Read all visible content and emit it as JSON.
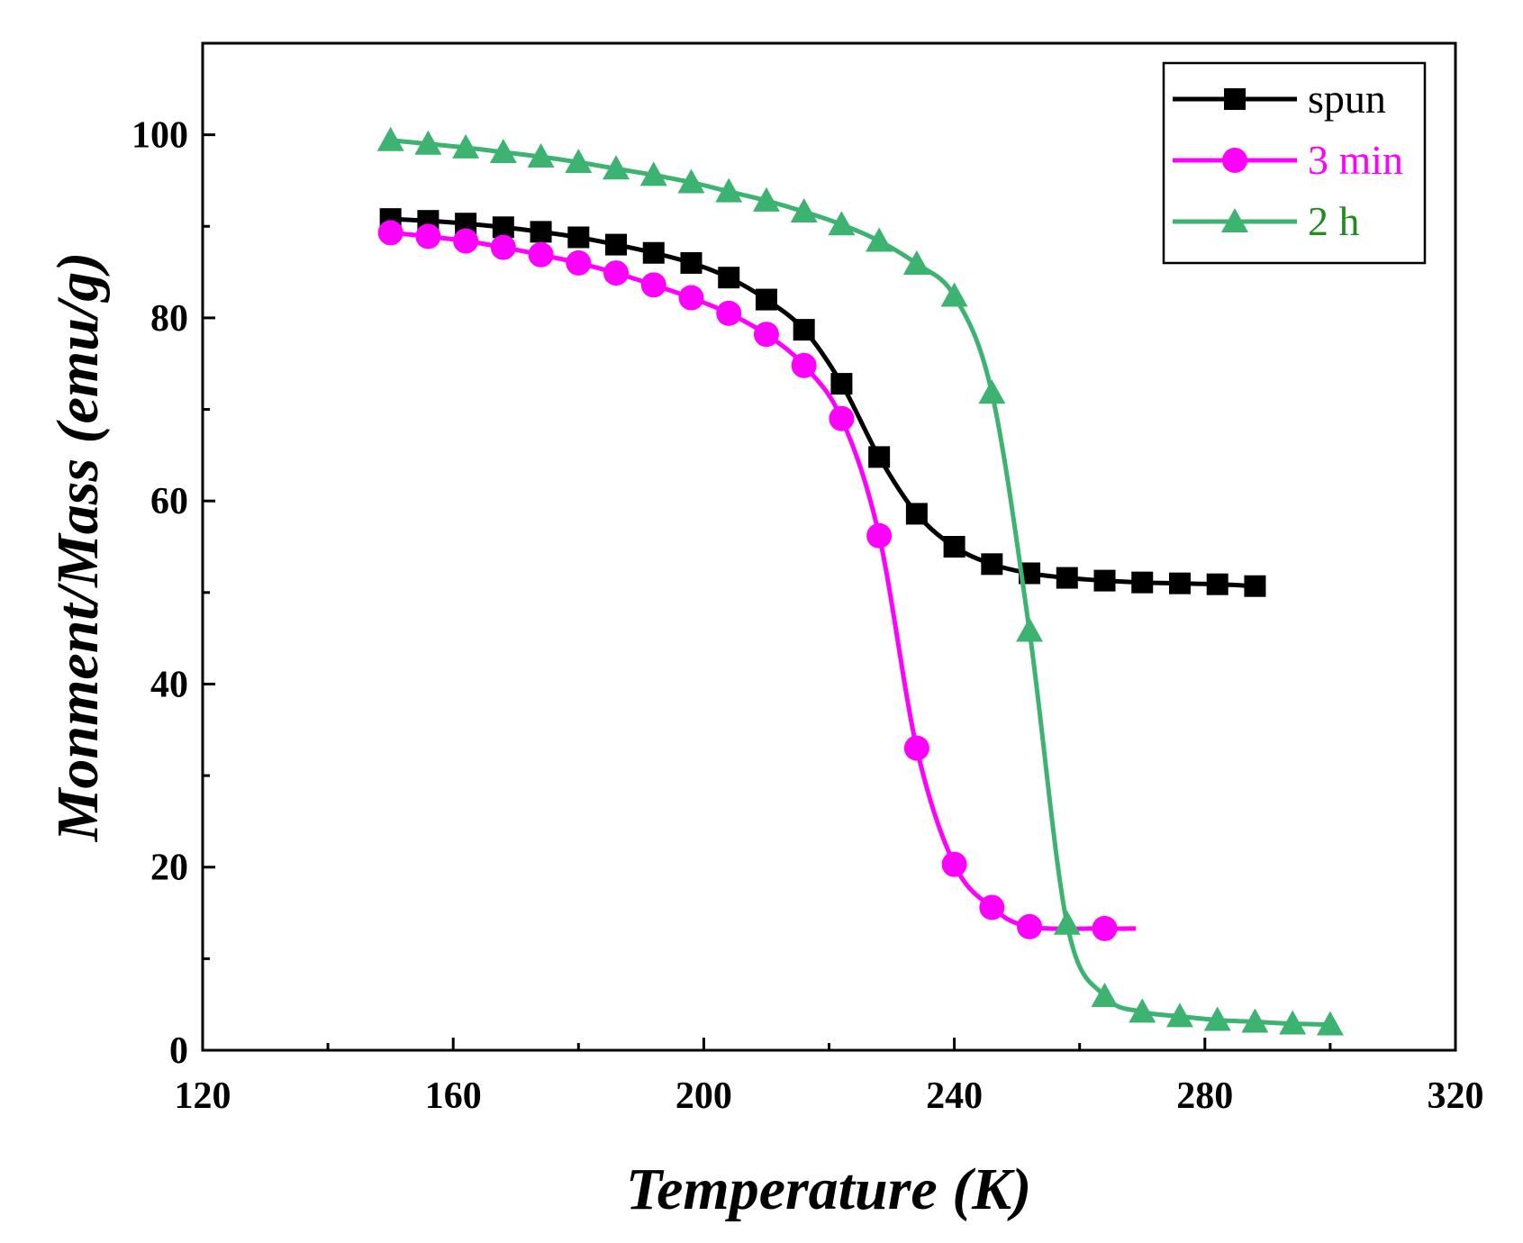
{
  "chart_data": {
    "type": "line",
    "title": "",
    "xlabel": "Temperature (K)",
    "ylabel": "Monment/Mass (emu/g)",
    "xlim": [
      120,
      320
    ],
    "ylim": [
      0,
      110
    ],
    "xticks": [
      120,
      160,
      200,
      240,
      280,
      320
    ],
    "yticks": [
      0,
      20,
      40,
      60,
      80,
      100
    ],
    "legend_position": "top-right",
    "series": [
      {
        "name": "spun",
        "color": "#000000",
        "marker": "square",
        "x": [
          150,
          156,
          162,
          168,
          174,
          180,
          186,
          192,
          198,
          204,
          210,
          216,
          222,
          228,
          234,
          240,
          246,
          252,
          258,
          264,
          270,
          276,
          282,
          288
        ],
        "y": [
          90.8,
          90.6,
          90.3,
          89.9,
          89.4,
          88.8,
          88.0,
          87.1,
          86.0,
          84.4,
          82.0,
          78.7,
          72.8,
          64.8,
          58.6,
          55.0,
          53.1,
          52.1,
          51.6,
          51.3,
          51.1,
          51.0,
          50.9,
          50.7
        ]
      },
      {
        "name": "3 min",
        "color": "#ff00ff",
        "marker": "circle",
        "x": [
          150,
          156,
          162,
          168,
          174,
          180,
          186,
          192,
          198,
          204,
          210,
          216,
          222,
          228,
          234,
          240,
          246,
          252,
          264
        ],
        "y": [
          89.3,
          88.9,
          88.4,
          87.7,
          86.9,
          86.0,
          84.9,
          83.6,
          82.2,
          80.5,
          78.2,
          74.8,
          69.0,
          56.2,
          33.0,
          20.3,
          15.6,
          13.5,
          13.3
        ]
      },
      {
        "name": "2 h",
        "color": "#3cb371",
        "marker": "triangle",
        "x": [
          150,
          156,
          162,
          168,
          174,
          180,
          186,
          192,
          198,
          204,
          210,
          216,
          222,
          228,
          234,
          240,
          246,
          252,
          258,
          264,
          270,
          276,
          282,
          288,
          294,
          300
        ],
        "y": [
          99.4,
          99.0,
          98.6,
          98.1,
          97.6,
          97.0,
          96.3,
          95.6,
          94.8,
          93.8,
          92.8,
          91.6,
          90.2,
          88.4,
          85.9,
          82.4,
          71.8,
          45.8,
          13.8,
          5.9,
          4.2,
          3.7,
          3.3,
          3.1,
          2.9,
          2.8
        ]
      }
    ]
  }
}
